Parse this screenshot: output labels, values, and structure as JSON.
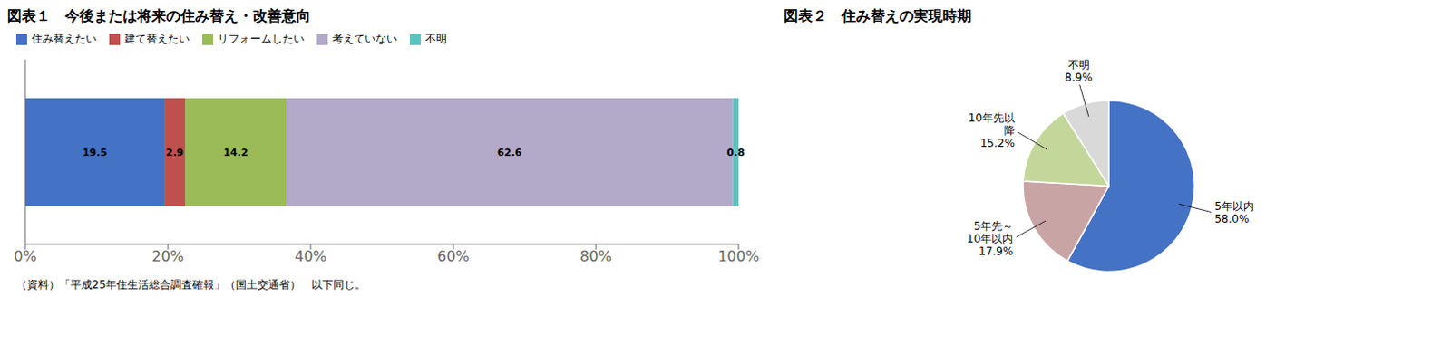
{
  "chart_data": [
    {
      "type": "bar",
      "title": "図表１　今後または将来の住み替え・改善意向",
      "orientation": "horizontal",
      "stacked": true,
      "categories": [
        null
      ],
      "series": [
        {
          "name": "住み替えたい",
          "color": "#4472C4",
          "values": [
            19.5
          ]
        },
        {
          "name": "建て替えたい",
          "color": "#C0504D",
          "values": [
            2.9
          ]
        },
        {
          "name": "リフォームしたい",
          "color": "#9BBB59",
          "values": [
            14.2
          ]
        },
        {
          "name": "考えていない",
          "color": "#B3A9C8",
          "values": [
            62.6
          ]
        },
        {
          "name": "不明",
          "color": "#5BC4C0",
          "values": [
            0.8
          ]
        }
      ],
      "xlim": [
        0,
        100
      ],
      "xticks": [
        {
          "value": 0,
          "label": "0%"
        },
        {
          "value": 20,
          "label": "20%"
        },
        {
          "value": 40,
          "label": "40%"
        },
        {
          "value": 60,
          "label": "60%"
        },
        {
          "value": 80,
          "label": "80%"
        },
        {
          "value": 100,
          "label": "100%"
        }
      ],
      "data_labels": true,
      "legend": "upper left",
      "grid": false,
      "tick_labels": "x",
      "annotations": [
        "（資料）「平成25年住生活総合調査確報」（国土交通省）　以下同じ。"
      ]
    },
    {
      "type": "pie",
      "title": "図表２　住み替えの実現時期",
      "categories": [
        "5年以内",
        "5年先～\n10年以内",
        "10年先以\n降",
        "不明"
      ],
      "values": [
        58.0,
        17.9,
        15.2,
        8.9
      ],
      "value_labels": [
        "58.0%",
        "17.9%",
        "15.2%",
        "8.9%"
      ],
      "colors": [
        "#4472C4",
        "#C9A4A4",
        "#C4D79B",
        "#D9D9D9"
      ],
      "data_labels": true
    }
  ]
}
